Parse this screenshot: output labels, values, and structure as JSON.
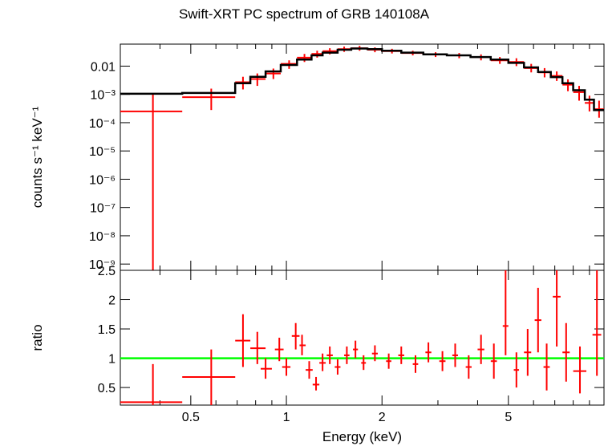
{
  "chart_data": {
    "type": "line",
    "title": "Swift-XRT PC spectrum of GRB 140108A",
    "xlabel": "Energy (keV)",
    "x_scale": "log",
    "xlim": [
      0.3,
      10
    ],
    "x_ticks": [
      {
        "value": 0.5,
        "label": "0.5"
      },
      {
        "value": 1,
        "label": "1"
      },
      {
        "value": 2,
        "label": "2"
      },
      {
        "value": 5,
        "label": "5"
      }
    ],
    "colors": {
      "data": "#ff0000",
      "model": "#000000",
      "unity": "#00ff00"
    },
    "panels": [
      {
        "id": "spectrum",
        "ylabel": "counts s⁻¹ keV⁻¹",
        "y_scale": "log",
        "ylim": [
          6e-10,
          0.06
        ],
        "y_ticks": [
          {
            "value": 0.01,
            "label": "0.01"
          },
          {
            "value": 0.001,
            "label": "10⁻³"
          },
          {
            "value": 0.0001,
            "label": "10⁻⁴"
          },
          {
            "value": 1e-05,
            "label": "10⁻⁵"
          },
          {
            "value": 1e-06,
            "label": "10⁻⁶"
          },
          {
            "value": 1e-07,
            "label": "10⁻⁷"
          },
          {
            "value": 1e-08,
            "label": "10⁻⁸"
          },
          {
            "value": 1e-09,
            "label": "10⁻⁹"
          }
        ],
        "model": [
          [
            0.3,
            0.00105
          ],
          [
            0.47,
            0.00105
          ],
          [
            0.47,
            0.00112
          ],
          [
            0.69,
            0.00112
          ],
          [
            0.69,
            0.0025
          ],
          [
            0.77,
            0.0025
          ],
          [
            0.77,
            0.0042
          ],
          [
            0.86,
            0.0042
          ],
          [
            0.86,
            0.0065
          ],
          [
            0.96,
            0.0065
          ],
          [
            0.96,
            0.011
          ],
          [
            1.08,
            0.011
          ],
          [
            1.08,
            0.017
          ],
          [
            1.2,
            0.017
          ],
          [
            1.2,
            0.024
          ],
          [
            1.3,
            0.024
          ],
          [
            1.3,
            0.03
          ],
          [
            1.45,
            0.03
          ],
          [
            1.45,
            0.038
          ],
          [
            1.6,
            0.038
          ],
          [
            1.6,
            0.042
          ],
          [
            1.8,
            0.042
          ],
          [
            1.8,
            0.04
          ],
          [
            2.0,
            0.04
          ],
          [
            2.0,
            0.035
          ],
          [
            2.3,
            0.035
          ],
          [
            2.3,
            0.03
          ],
          [
            2.7,
            0.03
          ],
          [
            2.7,
            0.026
          ],
          [
            3.2,
            0.026
          ],
          [
            3.2,
            0.024
          ],
          [
            3.8,
            0.024
          ],
          [
            3.8,
            0.021
          ],
          [
            4.4,
            0.021
          ],
          [
            4.4,
            0.017
          ],
          [
            5.0,
            0.017
          ],
          [
            5.0,
            0.013
          ],
          [
            5.6,
            0.013
          ],
          [
            5.6,
            0.009
          ],
          [
            6.2,
            0.009
          ],
          [
            6.2,
            0.0062
          ],
          [
            6.8,
            0.0062
          ],
          [
            6.8,
            0.0041
          ],
          [
            7.4,
            0.0041
          ],
          [
            7.4,
            0.0025
          ],
          [
            8.0,
            0.0025
          ],
          [
            8.0,
            0.0014
          ],
          [
            8.7,
            0.0014
          ],
          [
            8.7,
            0.00065
          ],
          [
            9.3,
            0.00065
          ],
          [
            9.3,
            0.00028
          ],
          [
            10,
            0.00028
          ]
        ],
        "points": [
          {
            "x": 0.38,
            "y": 0.00025,
            "xlo": 0.3,
            "xhi": 0.47,
            "ylo": 6e-10,
            "yhi": 0.0011
          },
          {
            "x": 0.58,
            "y": 0.0008,
            "xlo": 0.47,
            "xhi": 0.69,
            "ylo": 0.00028,
            "yhi": 0.0016
          },
          {
            "x": 0.73,
            "y": 0.0027,
            "xlo": 0.69,
            "xhi": 0.77,
            "ylo": 0.0015,
            "yhi": 0.0042
          },
          {
            "x": 0.81,
            "y": 0.0035,
            "xlo": 0.77,
            "xhi": 0.86,
            "ylo": 0.002,
            "yhi": 0.0055
          },
          {
            "x": 0.91,
            "y": 0.0055,
            "xlo": 0.86,
            "xhi": 0.96,
            "ylo": 0.0035,
            "yhi": 0.0082
          },
          {
            "x": 1.02,
            "y": 0.012,
            "xlo": 0.96,
            "xhi": 1.08,
            "ylo": 0.008,
            "yhi": 0.016
          },
          {
            "x": 1.14,
            "y": 0.02,
            "xlo": 1.08,
            "xhi": 1.2,
            "ylo": 0.014,
            "yhi": 0.027
          },
          {
            "x": 1.25,
            "y": 0.027,
            "xlo": 1.2,
            "xhi": 1.3,
            "ylo": 0.02,
            "yhi": 0.035
          },
          {
            "x": 1.37,
            "y": 0.034,
            "xlo": 1.3,
            "xhi": 1.45,
            "ylo": 0.026,
            "yhi": 0.043
          },
          {
            "x": 1.52,
            "y": 0.04,
            "xlo": 1.45,
            "xhi": 1.6,
            "ylo": 0.032,
            "yhi": 0.049
          },
          {
            "x": 1.7,
            "y": 0.043,
            "xlo": 1.6,
            "xhi": 1.8,
            "ylo": 0.035,
            "yhi": 0.052
          },
          {
            "x": 1.9,
            "y": 0.038,
            "xlo": 1.8,
            "xhi": 2.0,
            "ylo": 0.031,
            "yhi": 0.046
          },
          {
            "x": 2.15,
            "y": 0.034,
            "xlo": 2.0,
            "xhi": 2.3,
            "ylo": 0.028,
            "yhi": 0.041
          },
          {
            "x": 2.5,
            "y": 0.029,
            "xlo": 2.3,
            "xhi": 2.7,
            "ylo": 0.024,
            "yhi": 0.035
          },
          {
            "x": 2.95,
            "y": 0.026,
            "xlo": 2.7,
            "xhi": 3.2,
            "ylo": 0.021,
            "yhi": 0.031
          },
          {
            "x": 3.5,
            "y": 0.024,
            "xlo": 3.2,
            "xhi": 3.8,
            "ylo": 0.019,
            "yhi": 0.029
          },
          {
            "x": 4.1,
            "y": 0.021,
            "xlo": 3.8,
            "xhi": 4.4,
            "ylo": 0.016,
            "yhi": 0.026
          },
          {
            "x": 4.7,
            "y": 0.016,
            "xlo": 4.4,
            "xhi": 5.0,
            "ylo": 0.012,
            "yhi": 0.021
          },
          {
            "x": 5.3,
            "y": 0.014,
            "xlo": 5.0,
            "xhi": 5.6,
            "ylo": 0.01,
            "yhi": 0.019
          },
          {
            "x": 5.9,
            "y": 0.0085,
            "xlo": 5.6,
            "xhi": 6.2,
            "ylo": 0.006,
            "yhi": 0.012
          },
          {
            "x": 6.5,
            "y": 0.006,
            "xlo": 6.2,
            "xhi": 6.8,
            "ylo": 0.004,
            "yhi": 0.0085
          },
          {
            "x": 7.1,
            "y": 0.0045,
            "xlo": 6.8,
            "xhi": 7.4,
            "ylo": 0.003,
            "yhi": 0.0065
          },
          {
            "x": 7.7,
            "y": 0.0022,
            "xlo": 7.4,
            "xhi": 8.0,
            "ylo": 0.0013,
            "yhi": 0.0034
          },
          {
            "x": 8.35,
            "y": 0.0012,
            "xlo": 8.0,
            "xhi": 8.7,
            "ylo": 0.0006,
            "yhi": 0.002
          },
          {
            "x": 9.0,
            "y": 0.0005,
            "xlo": 8.7,
            "xhi": 9.3,
            "ylo": 0.00025,
            "yhi": 0.0009
          },
          {
            "x": 9.65,
            "y": 0.0003,
            "xlo": 9.3,
            "xhi": 10,
            "ylo": 0.00015,
            "yhi": 0.0006
          }
        ]
      },
      {
        "id": "ratio",
        "ylabel": "ratio",
        "y_scale": "linear",
        "ylim": [
          0.2,
          2.5
        ],
        "y_ticks": [
          {
            "value": 0.5,
            "label": "0.5"
          },
          {
            "value": 1,
            "label": "1"
          },
          {
            "value": 1.5,
            "label": "1.5"
          },
          {
            "value": 2,
            "label": "2"
          },
          {
            "value": 2.5,
            "label": "2.5"
          }
        ],
        "reference_line": 1,
        "points": [
          {
            "x": 0.38,
            "y": 0.25,
            "xlo": 0.3,
            "xhi": 0.47,
            "ylo": 0.2,
            "yhi": 0.9
          },
          {
            "x": 0.58,
            "y": 0.68,
            "xlo": 0.47,
            "xhi": 0.69,
            "ylo": 0.2,
            "yhi": 1.15
          },
          {
            "x": 0.73,
            "y": 1.3,
            "xlo": 0.69,
            "xhi": 0.77,
            "ylo": 0.85,
            "yhi": 1.75
          },
          {
            "x": 0.81,
            "y": 1.17,
            "xlo": 0.77,
            "xhi": 0.86,
            "ylo": 0.9,
            "yhi": 1.45
          },
          {
            "x": 0.86,
            "y": 0.82,
            "xlo": 0.83,
            "xhi": 0.9,
            "ylo": 0.65,
            "yhi": 1.0
          },
          {
            "x": 0.95,
            "y": 1.15,
            "xlo": 0.92,
            "xhi": 0.98,
            "ylo": 0.95,
            "yhi": 1.35
          },
          {
            "x": 1.0,
            "y": 0.85,
            "xlo": 0.97,
            "xhi": 1.03,
            "ylo": 0.7,
            "yhi": 1.0
          },
          {
            "x": 1.07,
            "y": 1.38,
            "xlo": 1.04,
            "xhi": 1.1,
            "ylo": 1.15,
            "yhi": 1.6
          },
          {
            "x": 1.12,
            "y": 1.22,
            "xlo": 1.1,
            "xhi": 1.15,
            "ylo": 1.05,
            "yhi": 1.4
          },
          {
            "x": 1.18,
            "y": 0.8,
            "xlo": 1.15,
            "xhi": 1.21,
            "ylo": 0.65,
            "yhi": 0.95
          },
          {
            "x": 1.24,
            "y": 0.55,
            "xlo": 1.21,
            "xhi": 1.27,
            "ylo": 0.45,
            "yhi": 0.68
          },
          {
            "x": 1.3,
            "y": 0.92,
            "xlo": 1.27,
            "xhi": 1.33,
            "ylo": 0.78,
            "yhi": 1.08
          },
          {
            "x": 1.37,
            "y": 1.05,
            "xlo": 1.34,
            "xhi": 1.4,
            "ylo": 0.9,
            "yhi": 1.2
          },
          {
            "x": 1.45,
            "y": 0.85,
            "xlo": 1.42,
            "xhi": 1.48,
            "ylo": 0.72,
            "yhi": 0.98
          },
          {
            "x": 1.55,
            "y": 1.05,
            "xlo": 1.52,
            "xhi": 1.58,
            "ylo": 0.9,
            "yhi": 1.2
          },
          {
            "x": 1.65,
            "y": 1.15,
            "xlo": 1.62,
            "xhi": 1.68,
            "ylo": 1.0,
            "yhi": 1.3
          },
          {
            "x": 1.75,
            "y": 0.92,
            "xlo": 1.72,
            "xhi": 1.78,
            "ylo": 0.8,
            "yhi": 1.05
          },
          {
            "x": 1.9,
            "y": 1.08,
            "xlo": 1.86,
            "xhi": 1.94,
            "ylo": 0.95,
            "yhi": 1.22
          },
          {
            "x": 2.1,
            "y": 0.95,
            "xlo": 2.06,
            "xhi": 2.14,
            "ylo": 0.82,
            "yhi": 1.08
          },
          {
            "x": 2.3,
            "y": 1.05,
            "xlo": 2.25,
            "xhi": 2.35,
            "ylo": 0.9,
            "yhi": 1.2
          },
          {
            "x": 2.55,
            "y": 0.9,
            "xlo": 2.5,
            "xhi": 2.6,
            "ylo": 0.75,
            "yhi": 1.05
          },
          {
            "x": 2.8,
            "y": 1.1,
            "xlo": 2.74,
            "xhi": 2.86,
            "ylo": 0.93,
            "yhi": 1.27
          },
          {
            "x": 3.1,
            "y": 0.95,
            "xlo": 3.03,
            "xhi": 3.17,
            "ylo": 0.78,
            "yhi": 1.12
          },
          {
            "x": 3.4,
            "y": 1.05,
            "xlo": 3.33,
            "xhi": 3.47,
            "ylo": 0.85,
            "yhi": 1.25
          },
          {
            "x": 3.75,
            "y": 0.85,
            "xlo": 3.67,
            "xhi": 3.83,
            "ylo": 0.65,
            "yhi": 1.05
          },
          {
            "x": 4.1,
            "y": 1.15,
            "xlo": 4.0,
            "xhi": 4.2,
            "ylo": 0.9,
            "yhi": 1.4
          },
          {
            "x": 4.5,
            "y": 0.95,
            "xlo": 4.4,
            "xhi": 4.6,
            "ylo": 0.65,
            "yhi": 1.25
          },
          {
            "x": 4.9,
            "y": 1.55,
            "xlo": 4.8,
            "xhi": 5.0,
            "ylo": 1.05,
            "yhi": 2.5
          },
          {
            "x": 5.3,
            "y": 0.8,
            "xlo": 5.2,
            "xhi": 5.4,
            "ylo": 0.5,
            "yhi": 1.1
          },
          {
            "x": 5.75,
            "y": 1.1,
            "xlo": 5.6,
            "xhi": 5.9,
            "ylo": 0.7,
            "yhi": 1.5
          },
          {
            "x": 6.2,
            "y": 1.65,
            "xlo": 6.05,
            "xhi": 6.35,
            "ylo": 1.1,
            "yhi": 2.2
          },
          {
            "x": 6.6,
            "y": 0.85,
            "xlo": 6.45,
            "xhi": 6.75,
            "ylo": 0.45,
            "yhi": 1.25
          },
          {
            "x": 7.1,
            "y": 2.05,
            "xlo": 6.9,
            "xhi": 7.3,
            "ylo": 1.2,
            "yhi": 2.5
          },
          {
            "x": 7.6,
            "y": 1.1,
            "xlo": 7.4,
            "xhi": 7.8,
            "ylo": 0.6,
            "yhi": 1.6
          },
          {
            "x": 8.4,
            "y": 0.78,
            "xlo": 8.0,
            "xhi": 8.8,
            "ylo": 0.4,
            "yhi": 1.2
          },
          {
            "x": 9.5,
            "y": 1.4,
            "xlo": 9.2,
            "xhi": 9.8,
            "ylo": 0.7,
            "yhi": 2.5
          }
        ]
      }
    ]
  }
}
